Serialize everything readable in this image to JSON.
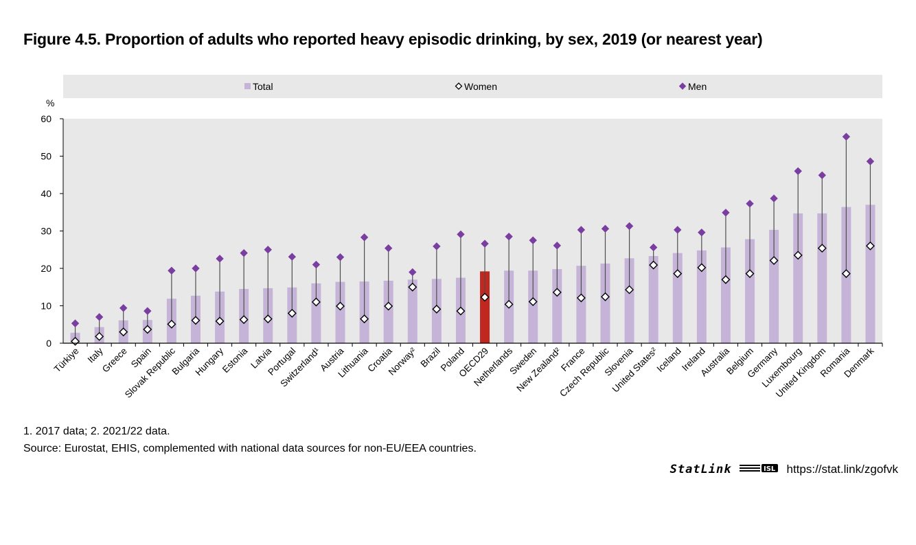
{
  "title": "Figure 4.5. Proportion of adults who reported heavy episodic drinking, by sex, 2019 (or nearest year)",
  "chart_data": {
    "type": "bar",
    "ylabel": "%",
    "ylim": [
      0,
      60
    ],
    "yticks": [
      0,
      10,
      20,
      30,
      40,
      50,
      60
    ],
    "grid": false,
    "legend_position": "top",
    "legend": [
      "Total",
      "Women",
      "Men"
    ],
    "colors": {
      "total": "#c5b4d8",
      "highlight": "#c0271f",
      "women": "#ffffff",
      "men": "#7a3ea0",
      "plot_bg": "#e8e8e8",
      "whisker": "#4d4d4d"
    },
    "highlight_category": "OECD29",
    "categories": [
      "Türkiye",
      "Italy",
      "Greece",
      "Spain",
      "Slovak Republic",
      "Bulgaria",
      "Hungary",
      "Estonia",
      "Latvia",
      "Portugal",
      "Switzerland¹",
      "Austria",
      "Lithuania",
      "Croatia",
      "Norway²",
      "Brazil",
      "Poland",
      "OECD29",
      "Netherlands",
      "Sweden",
      "New Zealand²",
      "France",
      "Czech Republic",
      "Slovenia",
      "United States²",
      "Iceland",
      "Ireland",
      "Australia",
      "Belgium",
      "Germany",
      "Luxembourg",
      "United Kingdom",
      "Romania",
      "Denmark"
    ],
    "series": [
      {
        "name": "Total",
        "values": [
          2.8,
          4.3,
          6.1,
          6.2,
          11.9,
          12.7,
          13.8,
          14.5,
          14.7,
          14.9,
          16.0,
          16.4,
          16.5,
          16.7,
          17.0,
          17.2,
          17.5,
          19.2,
          19.4,
          19.4,
          19.8,
          20.7,
          21.3,
          22.7,
          23.3,
          24.1,
          24.8,
          25.6,
          27.8,
          30.3,
          34.7,
          34.7,
          36.4,
          37.0
        ]
      },
      {
        "name": "Women",
        "values": [
          0.5,
          1.8,
          3.0,
          3.7,
          5.1,
          6.1,
          5.9,
          6.3,
          6.5,
          8.0,
          11.0,
          9.9,
          6.5,
          9.9,
          15.0,
          9.1,
          8.6,
          12.3,
          10.4,
          11.1,
          13.6,
          12.1,
          12.4,
          14.3,
          20.9,
          18.6,
          20.2,
          17.0,
          18.6,
          22.1,
          23.5,
          25.4,
          18.6,
          26.0
        ]
      },
      {
        "name": "Men",
        "values": [
          5.3,
          7.0,
          9.4,
          8.6,
          19.4,
          20.0,
          22.6,
          24.1,
          25.0,
          23.1,
          21.0,
          23.0,
          28.3,
          25.4,
          19.0,
          25.9,
          29.1,
          26.6,
          28.5,
          27.5,
          26.1,
          30.3,
          30.6,
          31.3,
          25.6,
          30.3,
          29.6,
          34.9,
          37.3,
          38.7,
          46.0,
          44.9,
          55.2,
          48.6
        ]
      }
    ]
  },
  "notes": {
    "footnote": "1. 2017 data; 2. 2021/22 data.",
    "source": "Source: Eurostat, EHIS, complemented with national data sources for non-EU/EEA countries."
  },
  "statlink": {
    "brand": "StatLink",
    "url": "https://stat.link/zgofvk"
  }
}
